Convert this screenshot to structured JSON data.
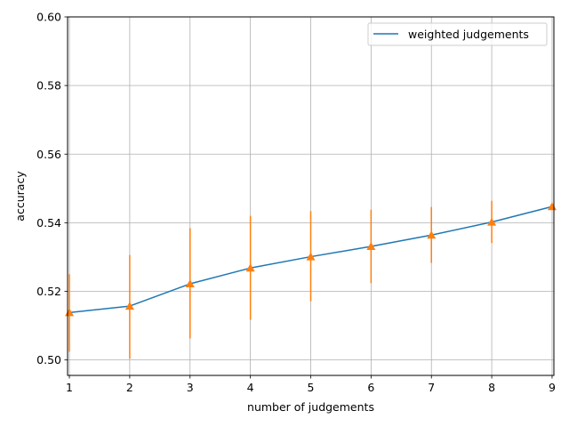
{
  "chart_data": {
    "type": "line",
    "title": "",
    "xlabel": "number of judgements",
    "ylabel": "accuracy",
    "xlim": [
      0.97,
      9.03
    ],
    "ylim": [
      0.4955,
      0.6
    ],
    "xticks": [
      1,
      2,
      3,
      4,
      5,
      6,
      7,
      8,
      9
    ],
    "yticks": [
      0.5,
      0.52,
      0.54,
      0.56,
      0.58,
      0.6
    ],
    "ytick_labels": [
      "0.50",
      "0.52",
      "0.54",
      "0.56",
      "0.58",
      "0.60"
    ],
    "grid": true,
    "legend_position": "top-right",
    "series": [
      {
        "name": "weighted judgements",
        "color": "#1f77b4",
        "x": [
          1,
          2,
          3,
          4,
          5,
          6,
          7,
          8,
          9
        ],
        "y": [
          0.5138,
          0.5157,
          0.5222,
          0.5268,
          0.5301,
          0.5331,
          0.5364,
          0.5402,
          0.5447
        ]
      }
    ],
    "error_bars": {
      "color": "#ff7f0e",
      "marker": "triangle",
      "x": [
        1,
        2,
        3,
        4,
        5,
        6,
        7,
        8,
        9
      ],
      "y": [
        0.5138,
        0.5157,
        0.5222,
        0.5268,
        0.5301,
        0.5331,
        0.5364,
        0.5402,
        0.5447
      ],
      "low": [
        0.5024,
        0.5004,
        0.5063,
        0.5117,
        0.5171,
        0.5224,
        0.5283,
        0.5341,
        0.5447
      ],
      "high": [
        0.525,
        0.5306,
        0.5384,
        0.542,
        0.5434,
        0.5438,
        0.5446,
        0.5464,
        0.5447
      ]
    }
  }
}
